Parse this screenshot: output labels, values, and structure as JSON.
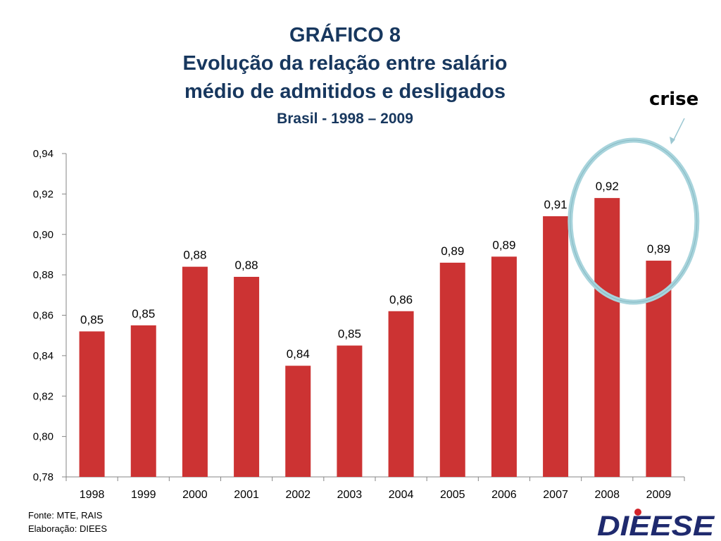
{
  "header": {
    "line1": "GRÁFICO 8",
    "line2": "Evolução da relação entre salário",
    "line3": "médio de admitidos e desligados",
    "line4": "Brasil  - 1998 – 2009"
  },
  "annotation": {
    "label": "crise",
    "circle_color": "#a8d4dc",
    "arrow_color": "#9cc8d2"
  },
  "footer": {
    "source": "Fonte: MTE, RAIS",
    "credit": "Elaboração: DIEES"
  },
  "logo": {
    "text": "DIEESE",
    "color": "#1f2a6e",
    "dot_color": "#d2232a"
  },
  "colors": {
    "bar": "#cc3333",
    "title": "#17375e"
  },
  "chart_data": {
    "type": "bar",
    "title": "Evolução da relação entre salário médio de admitidos e desligados - Brasil 1998 – 2009",
    "xlabel": "",
    "ylabel": "",
    "categories": [
      "1998",
      "1999",
      "2000",
      "2001",
      "2002",
      "2003",
      "2004",
      "2005",
      "2006",
      "2007",
      "2008",
      "2009"
    ],
    "values": [
      0.852,
      0.855,
      0.884,
      0.879,
      0.835,
      0.845,
      0.862,
      0.886,
      0.889,
      0.909,
      0.918,
      0.887
    ],
    "data_labels": [
      "0,85",
      "0,85",
      "0,88",
      "0,88",
      "0,84",
      "0,85",
      "0,86",
      "0,89",
      "0,89",
      "0,91",
      "0,92",
      "0,89"
    ],
    "ylim": [
      0.78,
      0.94
    ],
    "yticks": [
      0.78,
      0.8,
      0.82,
      0.84,
      0.86,
      0.88,
      0.9,
      0.92,
      0.94
    ],
    "ytick_labels": [
      "0,78",
      "0,80",
      "0,82",
      "0,84",
      "0,86",
      "0,88",
      "0,90",
      "0,92",
      "0,94"
    ],
    "grid": false,
    "legend": "none"
  }
}
